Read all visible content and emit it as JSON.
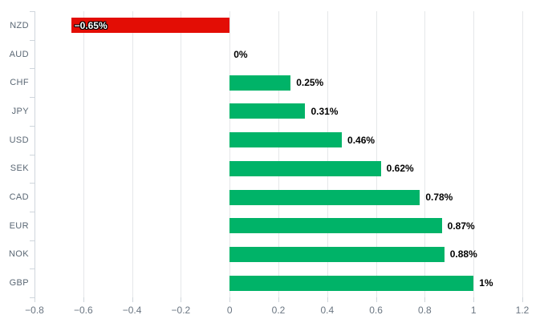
{
  "chart_data": {
    "type": "bar",
    "orientation": "horizontal",
    "title": "",
    "xlabel": "",
    "ylabel": "",
    "categories": [
      "NZD",
      "AUD",
      "CHF",
      "JPY",
      "USD",
      "SEK",
      "CAD",
      "EUR",
      "NOK",
      "GBP"
    ],
    "values": [
      -0.65,
      0,
      0.25,
      0.31,
      0.46,
      0.62,
      0.78,
      0.87,
      0.88,
      1
    ],
    "value_labels": [
      "−0.65%",
      "0%",
      "0.25%",
      "0.31%",
      "0.46%",
      "0.62%",
      "0.78%",
      "0.87%",
      "0.88%",
      "1%"
    ],
    "xlim": [
      -0.8,
      1.2
    ],
    "x_ticks": [
      -0.8,
      -0.6,
      -0.4,
      -0.2,
      0,
      0.2,
      0.4,
      0.6,
      0.8,
      1,
      1.2
    ],
    "x_tick_labels": [
      "−0.8",
      "−0.6",
      "−0.4",
      "−0.2",
      "0",
      "0.2",
      "0.4",
      "0.6",
      "0.8",
      "1",
      "1.2"
    ],
    "grid": "vertical",
    "legend": "none",
    "colors": {
      "positive_bar": "#00b368",
      "negative_bar": "#e30d05",
      "value_label": "#000000",
      "negative_value_label": "#ffffff",
      "grid": "#e5e7e9",
      "axis": "#cfd6dc",
      "tick_text": "#6b7682",
      "category_text": "#5a6774",
      "background": "#ffffff"
    }
  }
}
